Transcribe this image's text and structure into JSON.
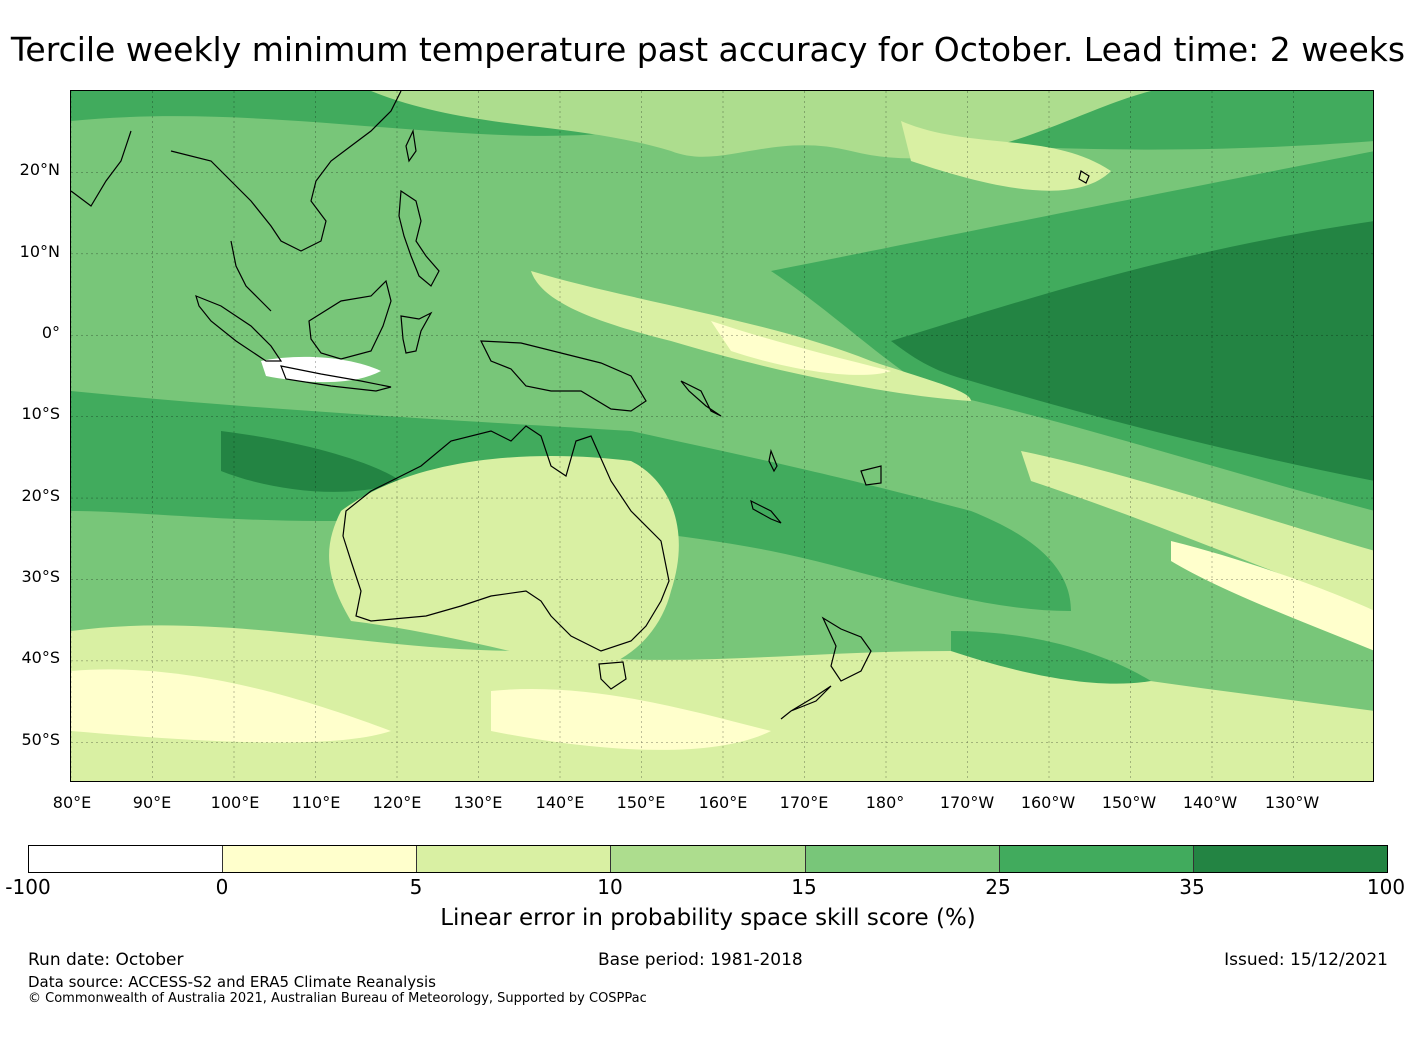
{
  "title": "Tercile weekly minimum temperature past accuracy for October. Lead time: 2 weeks",
  "map": {
    "lat_labels": [
      "20°N",
      "10°N",
      "0°",
      "10°S",
      "20°S",
      "30°S",
      "40°S",
      "50°S"
    ],
    "lon_labels": [
      "80°E",
      "90°E",
      "100°E",
      "110°E",
      "120°E",
      "130°E",
      "140°E",
      "150°E",
      "160°E",
      "170°E",
      "180°",
      "170°W",
      "160°W",
      "150°W",
      "140°W",
      "130°W"
    ],
    "lon_range": [
      80,
      240
    ],
    "lat_range": [
      -55,
      30
    ]
  },
  "colorbar": {
    "title": "Linear error in probability space skill score (%)",
    "bounds": [
      "-100",
      "0",
      "5",
      "10",
      "15",
      "25",
      "35",
      "100"
    ],
    "colors": [
      "#ffffff",
      "#ffffcc",
      "#d9f0a3",
      "#addd8e",
      "#78c679",
      "#41ab5d",
      "#238443"
    ]
  },
  "footer": {
    "run_date": "Run date: October",
    "base_period": "Base period: 1981-2018",
    "issued": "Issued: 15/12/2021",
    "data_source": "Data source: ACCESS-S2 and ERA5 Climate Reanalysis",
    "copyright": "© Commonwealth of Australia 2021, Australian Bureau of Meteorology, Supported by COSPPac"
  }
}
